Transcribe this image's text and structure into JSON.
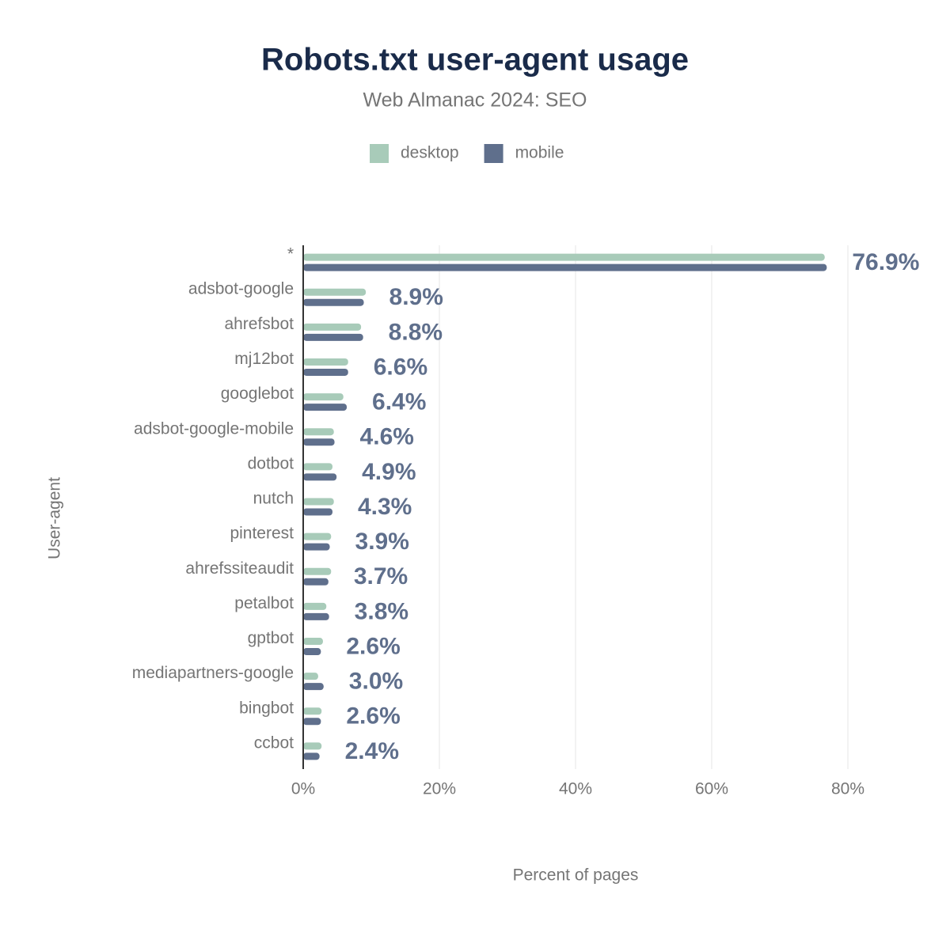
{
  "chart_data": {
    "type": "bar",
    "orientation": "horizontal",
    "title": "Robots.txt user-agent usage",
    "subtitle": "Web Almanac 2024: SEO",
    "x_label": "Percent of pages",
    "y_label": "User-agent",
    "categories": [
      "*",
      "adsbot-google",
      "ahrefsbot",
      "mj12bot",
      "googlebot",
      "adsbot-google-mobile",
      "dotbot",
      "nutch",
      "pinterest",
      "ahrefssiteaudit",
      "petalbot",
      "gptbot",
      "mediapartners-google",
      "bingbot",
      "ccbot"
    ],
    "series": [
      {
        "name": "desktop",
        "color": "#a8cbb9",
        "values": [
          76.6,
          9.2,
          8.5,
          6.6,
          5.9,
          4.5,
          4.3,
          4.5,
          4.1,
          4.1,
          3.4,
          2.9,
          2.2,
          2.7,
          2.7
        ]
      },
      {
        "name": "mobile",
        "color": "#5f6f8c",
        "values": [
          76.9,
          8.9,
          8.8,
          6.6,
          6.4,
          4.6,
          4.9,
          4.3,
          3.9,
          3.7,
          3.8,
          2.6,
          3.0,
          2.6,
          2.4
        ],
        "value_labels": [
          "76.9%",
          "8.9%",
          "8.8%",
          "6.6%",
          "6.4%",
          "4.6%",
          "4.9%",
          "4.3%",
          "3.9%",
          "3.7%",
          "3.8%",
          "2.6%",
          "3.0%",
          "2.6%",
          "2.4%"
        ]
      }
    ],
    "xlim": [
      0,
      80
    ],
    "xticks": [
      {
        "value": 0,
        "label": "0%"
      },
      {
        "value": 20,
        "label": "20%"
      },
      {
        "value": 40,
        "label": "40%"
      },
      {
        "value": 60,
        "label": "60%"
      },
      {
        "value": 80,
        "label": "80%"
      }
    ],
    "grid": true,
    "legend": "top"
  }
}
